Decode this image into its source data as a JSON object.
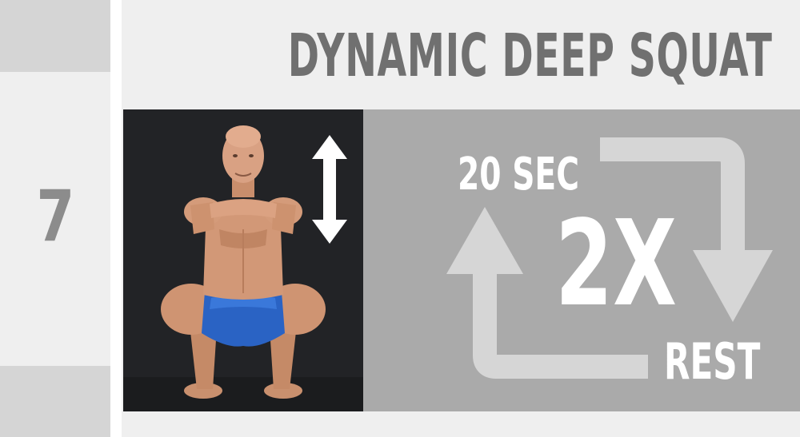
{
  "step": {
    "number": "7"
  },
  "exercise": {
    "title": "DYNAMIC DEEP SQUAT"
  },
  "routine": {
    "duration": "20 SEC",
    "repetitions": "2X",
    "rest": "REST"
  },
  "icons": {
    "movement": "up-down-arrow-icon",
    "cycle": "repeat-cycle-icon"
  },
  "colors": {
    "title": "#707070",
    "rail_accent": "#d5d5d5",
    "panel_background": "#aaaaaa",
    "cycle_arrows": "#d6d6d6",
    "text_light": "#ffffff"
  }
}
